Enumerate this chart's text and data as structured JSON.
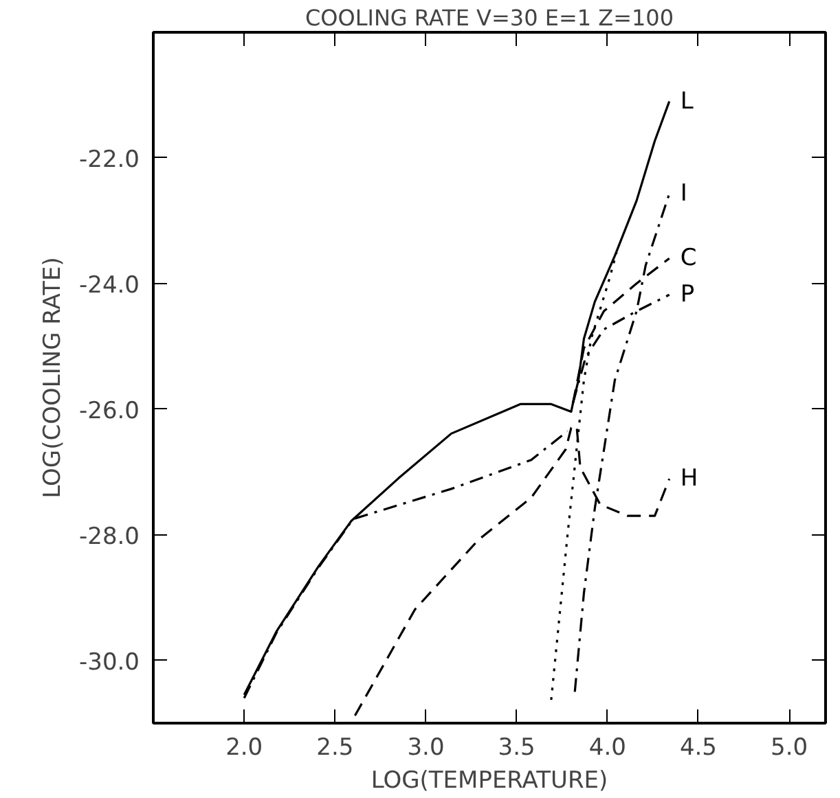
{
  "chart_data": {
    "type": "line",
    "title": "COOLING RATE V=30 E=1 Z=100",
    "xlabel": "LOG(TEMPERATURE)",
    "ylabel": "LOG(COOLING RATE)",
    "xlim": [
      1.5,
      5.2
    ],
    "ylim": [
      -31,
      -20
    ],
    "xticks": [
      {
        "value": 2.0,
        "label": "2.0"
      },
      {
        "value": 2.5,
        "label": "2.5"
      },
      {
        "value": 3.0,
        "label": "3.0"
      },
      {
        "value": 3.5,
        "label": "3.5"
      },
      {
        "value": 4.0,
        "label": "4.0"
      },
      {
        "value": 4.5,
        "label": "4.5"
      },
      {
        "value": 5.0,
        "label": "5.0"
      }
    ],
    "yticks": [
      {
        "value": -30,
        "label": "-30.0"
      },
      {
        "value": -28,
        "label": "-28.0"
      },
      {
        "value": -26,
        "label": "-26.0"
      },
      {
        "value": -24,
        "label": "-24.0"
      },
      {
        "value": -22,
        "label": "-22.0"
      }
    ],
    "grid": false,
    "series": [
      {
        "name": "L",
        "color": "#000000",
        "line_style": "solid",
        "x": [
          2.0,
          2.18,
          2.41,
          2.59,
          2.85,
          3.14,
          3.52,
          3.69,
          3.8,
          3.81,
          3.84,
          3.87,
          3.93,
          4.04,
          4.16,
          4.26,
          4.34
        ],
        "values": [
          -30.55,
          -29.53,
          -28.5,
          -27.78,
          -27.1,
          -26.39,
          -25.92,
          -25.92,
          -26.04,
          -25.9,
          -25.54,
          -24.88,
          -24.29,
          -23.56,
          -22.68,
          -21.73,
          -21.1
        ]
      },
      {
        "name": "I",
        "color": "#000000",
        "line_style": "dashdot",
        "x": [
          3.82,
          3.87,
          3.93,
          4.04,
          4.16,
          4.21,
          4.34
        ],
        "values": [
          -30.5,
          -28.93,
          -27.58,
          -25.54,
          -24.44,
          -23.71,
          -22.57
        ]
      },
      {
        "name": "C",
        "color": "#000000",
        "line_style": "dashed",
        "x": [
          3.81,
          3.87,
          3.98,
          4.16,
          4.34
        ],
        "values": [
          -25.9,
          -25.03,
          -24.44,
          -24.0,
          -23.6
        ]
      },
      {
        "name": "P",
        "color": "#000000",
        "line_style": "dashdot",
        "x": [
          3.81,
          3.88,
          3.98,
          4.16,
          4.34
        ],
        "values": [
          -25.9,
          -25.17,
          -24.73,
          -24.44,
          -24.18
        ]
      },
      {
        "name": "H",
        "color": "#000000",
        "line_style": "dashed",
        "x": [
          2.61,
          2.94,
          3.29,
          3.58,
          3.77,
          3.8,
          3.83,
          3.85,
          3.96,
          4.11,
          4.26,
          4.34
        ],
        "values": [
          -30.88,
          -29.19,
          -28.08,
          -27.41,
          -26.64,
          -26.3,
          -26.27,
          -26.93,
          -27.52,
          -27.7,
          -27.7,
          -27.11
        ]
      },
      {
        "color": "#000000",
        "line_style": "dashdot",
        "x": [
          2.0,
          2.18,
          2.41,
          2.6,
          3.14,
          3.58,
          3.78
        ],
        "values": [
          -30.6,
          -29.55,
          -28.52,
          -27.75,
          -27.27,
          -26.81,
          -26.35
        ]
      },
      {
        "color": "#000000",
        "line_style": "dotted",
        "x": [
          3.69,
          3.78,
          3.87,
          3.91,
          4.01,
          4.05
        ],
        "values": [
          -30.63,
          -28.0,
          -25.54,
          -24.88,
          -23.93,
          -23.5
        ]
      }
    ]
  }
}
